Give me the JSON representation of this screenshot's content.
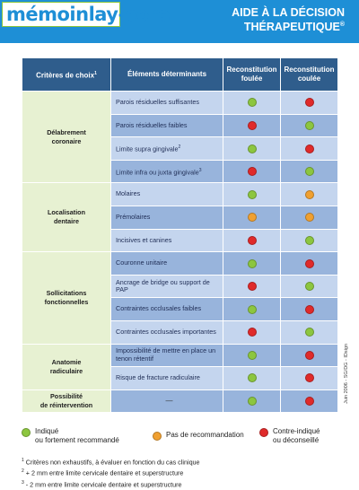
{
  "header": {
    "brand": "mémoinlay-core",
    "title_line1": "AIDE À LA DÉCISION",
    "title_line2": "THÉRAPEUTIQUE",
    "title_mark": "®"
  },
  "colors": {
    "header_bg": "#1e8fd6",
    "table_header_bg": "#2f5d8c",
    "category_bg": "#e7f1d2",
    "row_dark": "#98b4dc",
    "row_light": "#c4d5ee",
    "green": "#8cc63f",
    "orange": "#f0a030",
    "red": "#e02a2a"
  },
  "table": {
    "headers": {
      "criteria": "Critères de choix",
      "criteria_note": "1",
      "elements": "Éléments déterminants",
      "col1_line1": "Reconstitution",
      "col1_line2": "foulée",
      "col2_line1": "Reconstitution",
      "col2_line2": "coulée"
    },
    "groups": [
      {
        "category_line1": "Délabrement",
        "category_line2": "coronaire",
        "rows": [
          {
            "label": "Parois résiduelles suffisantes",
            "sup": "",
            "foulee": "green",
            "coulee": "red"
          },
          {
            "label": "Parois résiduelles faibles",
            "sup": "",
            "foulee": "red",
            "coulee": "green"
          },
          {
            "label": "Limite supra gingivale",
            "sup": "2",
            "foulee": "green",
            "coulee": "red"
          },
          {
            "label": "Limite infra ou juxta gingivale",
            "sup": "3",
            "foulee": "red",
            "coulee": "green"
          }
        ]
      },
      {
        "category_line1": "Localisation",
        "category_line2": "dentaire",
        "rows": [
          {
            "label": "Molaires",
            "sup": "",
            "foulee": "green",
            "coulee": "orange"
          },
          {
            "label": "Prémolaires",
            "sup": "",
            "foulee": "orange",
            "coulee": "orange"
          },
          {
            "label": "Incisives et canines",
            "sup": "",
            "foulee": "red",
            "coulee": "green"
          }
        ]
      },
      {
        "category_line1": "Sollicitations",
        "category_line2": "fonctionnelles",
        "rows": [
          {
            "label": "Couronne unitaire",
            "sup": "",
            "foulee": "green",
            "coulee": "red"
          },
          {
            "label": "Ancrage de bridge ou support de PAP",
            "sup": "",
            "foulee": "red",
            "coulee": "green"
          },
          {
            "label": "Contraintes occlusales faibles",
            "sup": "",
            "foulee": "green",
            "coulee": "red"
          },
          {
            "label": "Contraintes occlusales importantes",
            "sup": "",
            "foulee": "red",
            "coulee": "green"
          }
        ]
      },
      {
        "category_line1": "Anatomie",
        "category_line2": "radiculaire",
        "rows": [
          {
            "label_line1": "Impossibilité de mettre en place un",
            "label_line2": "tenon rétentif",
            "sup": "",
            "foulee": "green",
            "coulee": "red"
          },
          {
            "label": "Risque de fracture radiculaire",
            "sup": "",
            "foulee": "green",
            "coulee": "red"
          }
        ]
      },
      {
        "category_line1": "Possibilité",
        "category_line2": "de réintervention",
        "rows": [
          {
            "label": "—",
            "sup": "",
            "foulee": "green",
            "coulee": "red"
          }
        ]
      }
    ]
  },
  "side_note": "Juin 2006 - SG/DG - IDsign",
  "legend": {
    "green_line1": "Indiqué",
    "green_line2": "ou fortement recommandé",
    "orange_line1": "Pas de recommandation",
    "red_line1": "Contre-indiqué",
    "red_line2": "ou déconseillé"
  },
  "footnotes": [
    {
      "num": "1",
      "text": "Critères non exhaustifs, à évaluer en fonction du cas clinique"
    },
    {
      "num": "2",
      "text": "+ 2 mm entre limite cervicale dentaire et superstructure"
    },
    {
      "num": "3",
      "text": "- 2 mm entre limite cervicale dentaire et superstructure"
    }
  ]
}
